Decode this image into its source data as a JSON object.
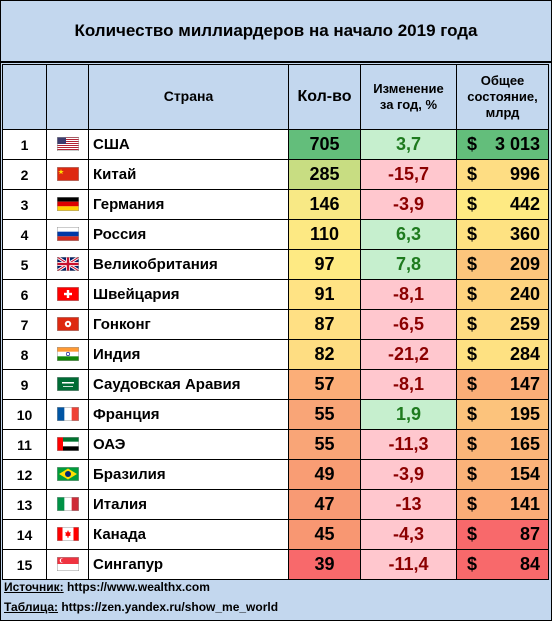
{
  "title": "Количество миллиардеров на начало 2019 года",
  "headers": {
    "country": "Страна",
    "count": "Кол-во",
    "change_line1": "Изменение",
    "change_line2": "за год, %",
    "wealth_line1": "Общее",
    "wealth_line2": "состояние,",
    "wealth_line3": "млрд"
  },
  "currency_symbol": "$",
  "chart_data": {
    "type": "table",
    "title": "Количество миллиардеров на начало 2019 года",
    "columns": [
      "",
      "",
      "Страна",
      "Кол-во",
      "Изменение за год, %",
      "Общее состояние, млрд"
    ],
    "rows": [
      {
        "rank": "1",
        "flag": "us-flag-icon",
        "country": "США",
        "count": 705,
        "change": "3,7",
        "wealth": "3 013",
        "wealth_prefix": "$ "
      },
      {
        "rank": "2",
        "flag": "cn-flag-icon",
        "country": "Китай",
        "count": 285,
        "change": "-15,7",
        "wealth": "996",
        "wealth_prefix": "$"
      },
      {
        "rank": "3",
        "flag": "de-flag-icon",
        "country": "Германия",
        "count": 146,
        "change": "-3,9",
        "wealth": "442",
        "wealth_prefix": "$"
      },
      {
        "rank": "4",
        "flag": "ru-flag-icon",
        "country": "Россия",
        "count": 110,
        "change": "6,3",
        "wealth": "360",
        "wealth_prefix": "$"
      },
      {
        "rank": "5",
        "flag": "gb-flag-icon",
        "country": "Великобритания",
        "count": 97,
        "change": "7,8",
        "wealth": "209",
        "wealth_prefix": "$"
      },
      {
        "rank": "6",
        "flag": "ch-flag-icon",
        "country": "Швейцария",
        "count": 91,
        "change": "-8,1",
        "wealth": "240",
        "wealth_prefix": "$"
      },
      {
        "rank": "7",
        "flag": "hk-flag-icon",
        "country": "Гонконг",
        "count": 87,
        "change": "-6,5",
        "wealth": "259",
        "wealth_prefix": "$"
      },
      {
        "rank": "8",
        "flag": "in-flag-icon",
        "country": "Индия",
        "count": 82,
        "change": "-21,2",
        "wealth": "284",
        "wealth_prefix": "$"
      },
      {
        "rank": "9",
        "flag": "sa-flag-icon",
        "country": "Саудовская Аравия",
        "count": 57,
        "change": "-8,1",
        "wealth": "147",
        "wealth_prefix": "$"
      },
      {
        "rank": "10",
        "flag": "fr-flag-icon",
        "country": "Франция",
        "count": 55,
        "change": "1,9",
        "wealth": "195",
        "wealth_prefix": "$"
      },
      {
        "rank": "11",
        "flag": "ae-flag-icon",
        "country": "ОАЭ",
        "count": 55,
        "change": "-11,3",
        "wealth": "165",
        "wealth_prefix": "$"
      },
      {
        "rank": "12",
        "flag": "br-flag-icon",
        "country": "Бразилия",
        "count": 49,
        "change": "-3,9",
        "wealth": "154",
        "wealth_prefix": "$"
      },
      {
        "rank": "13",
        "flag": "it-flag-icon",
        "country": "Италия",
        "count": 47,
        "change": "-13",
        "wealth": "141",
        "wealth_prefix": "$"
      },
      {
        "rank": "14",
        "flag": "ca-flag-icon",
        "country": "Канада",
        "count": 45,
        "change": "-4,3",
        "wealth": "87",
        "wealth_prefix": "$"
      },
      {
        "rank": "15",
        "flag": "sg-flag-icon",
        "country": "Сингапур",
        "count": 39,
        "change": "-11,4",
        "wealth": "84",
        "wealth_prefix": "$"
      }
    ],
    "count_colors": [
      "#63be7b",
      "#c8dd82",
      "#f8e985",
      "#fde983",
      "#feea83",
      "#ffe384",
      "#ffe084",
      "#fedd82",
      "#fbae78",
      "#f9a577",
      "#f9a577",
      "#f99d74",
      "#f89a74",
      "#f89772",
      "#f8696b"
    ],
    "change_colors": {
      "positive": "#c6efce",
      "negative": "#ffc7ce"
    },
    "wealth_colors": [
      "#63be7b",
      "#fedd83",
      "#feea83",
      "#fee282",
      "#fcc57c",
      "#fed47f",
      "#fedb82",
      "#fee182",
      "#fbae78",
      "#fcc37c",
      "#fbb579",
      "#fbb279",
      "#fbac77",
      "#f8696b",
      "#f8696b"
    ]
  },
  "footer": {
    "source_label": "Источник:",
    "source_value": " https://www.wealthx.com",
    "table_label": "Таблица:",
    "table_value": " https://zen.yandex.ru/show_me_world"
  }
}
